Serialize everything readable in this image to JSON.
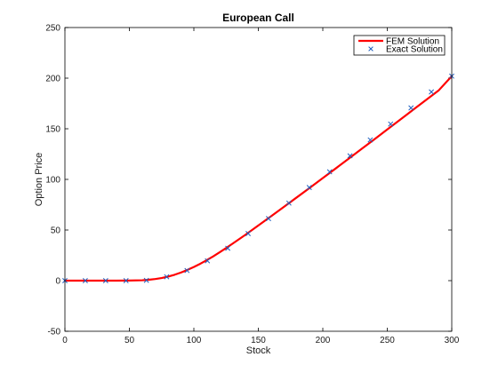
{
  "chart_data": {
    "type": "line",
    "title": "European Call",
    "xlabel": "Stock",
    "ylabel": "Option Price",
    "xlim": [
      0,
      300
    ],
    "ylim": [
      -50,
      250
    ],
    "x_ticks": [
      0,
      50,
      100,
      150,
      200,
      250,
      300
    ],
    "y_ticks": [
      -50,
      0,
      50,
      100,
      150,
      200,
      250
    ],
    "grid": false,
    "legend_position": "top-right",
    "series": [
      {
        "name": "FEM Solution",
        "style": "line",
        "color": "#ff0000",
        "x": [
          0,
          10,
          20,
          30,
          40,
          50,
          60,
          65,
          70,
          75,
          80,
          85,
          90,
          95,
          100,
          105,
          110,
          115,
          120,
          125,
          130,
          140,
          150,
          160,
          170,
          180,
          190,
          200,
          210,
          220,
          230,
          240,
          250,
          260,
          270,
          280,
          290,
          300
        ],
        "y": [
          0,
          0,
          0,
          0,
          0,
          0.1,
          0.4,
          0.9,
          1.6,
          2.6,
          4.0,
          5.8,
          8.0,
          10.6,
          13.5,
          16.7,
          20.2,
          24.0,
          28.0,
          32.2,
          36.5,
          45.3,
          54.5,
          63.7,
          73.0,
          82.4,
          91.8,
          101.3,
          110.8,
          120.4,
          130.0,
          139.6,
          149.3,
          159.0,
          168.7,
          178.4,
          188.1,
          202.0
        ]
      },
      {
        "name": "Exact Solution",
        "style": "marker-x",
        "color": "#1f5fbf",
        "x": [
          0,
          15.8,
          31.6,
          47.4,
          63.2,
          78.9,
          94.7,
          110.5,
          126.3,
          142.1,
          157.9,
          173.7,
          189.5,
          205.3,
          221.1,
          236.8,
          252.6,
          268.4,
          284.2,
          300
        ],
        "y": [
          0,
          0,
          0,
          0,
          0.3,
          3.8,
          10.0,
          19.6,
          32.0,
          46.5,
          61.3,
          76.6,
          92.0,
          107.5,
          123.3,
          139.0,
          154.7,
          170.6,
          186.4,
          202.0
        ]
      }
    ]
  }
}
